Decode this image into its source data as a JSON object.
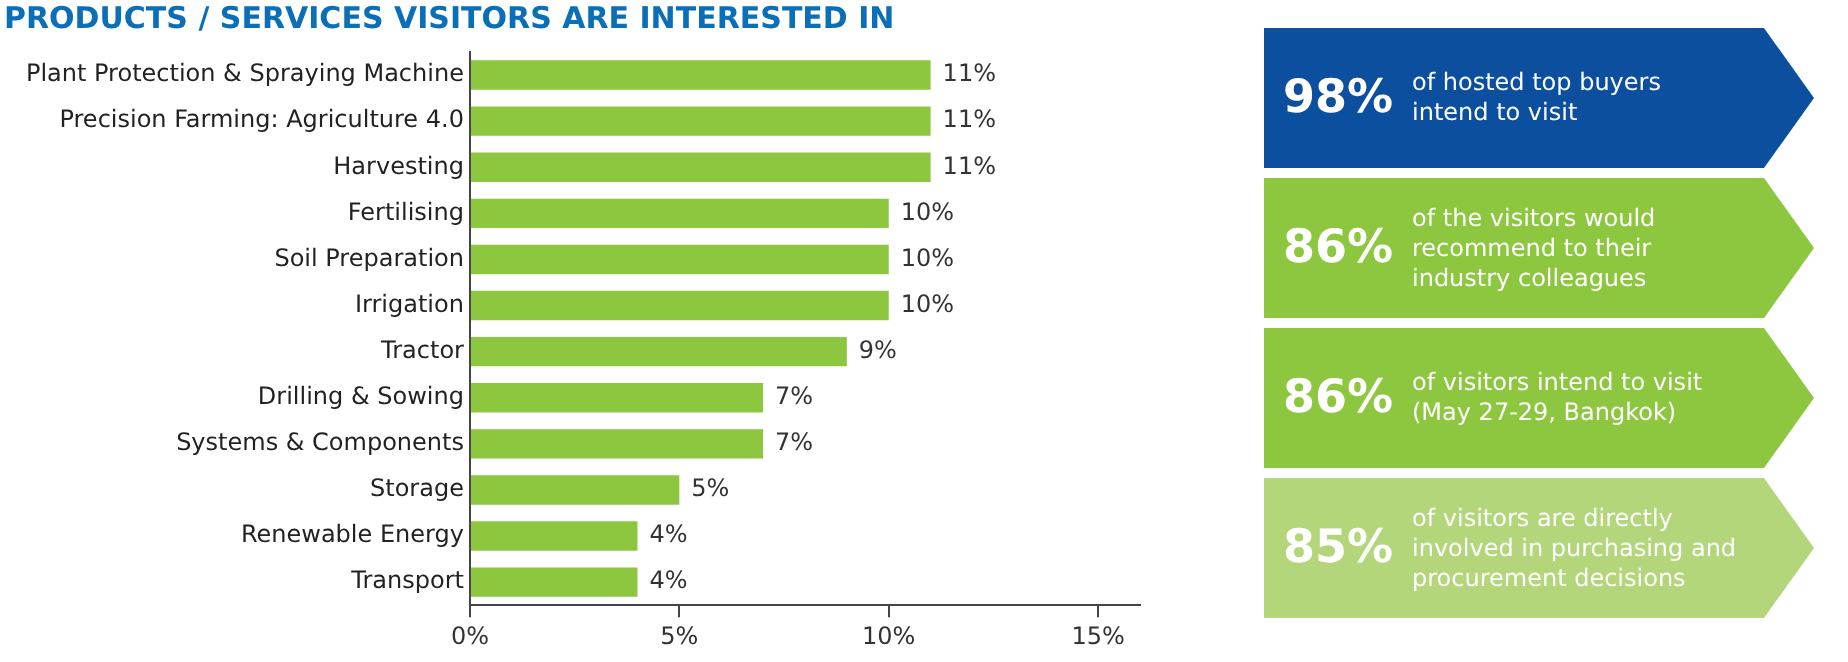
{
  "chart_data": [
    {
      "type": "bar",
      "orientation": "horizontal",
      "title": "PRODUCTS / SERVICES VISITORS ARE INTERESTED IN",
      "categories": [
        "Plant Protection & Spraying Machine",
        "Precision Farming: Agriculture 4.0",
        "Harvesting",
        "Fertilising",
        "Soil Preparation",
        "Irrigation",
        "Tractor",
        "Drilling & Sowing",
        "Systems & Components",
        "Storage",
        "Renewable Energy",
        "Transport"
      ],
      "values": [
        11,
        11,
        11,
        10,
        10,
        10,
        9,
        7,
        7,
        5,
        4,
        4
      ],
      "value_labels": [
        "11%",
        "11%",
        "11%",
        "10%",
        "10%",
        "10%",
        "9%",
        "7%",
        "7%",
        "5%",
        "4%",
        "4%"
      ],
      "color": "#8dc63f",
      "xlim": [
        0,
        16
      ],
      "xticks": [
        {
          "value": 0,
          "label": "0%"
        },
        {
          "value": 5,
          "label": "5%"
        },
        {
          "value": 10,
          "label": "10%"
        },
        {
          "value": 15,
          "label": "15%"
        }
      ],
      "grid": false,
      "legend": false
    },
    {
      "type": "other",
      "categories": [
        "98%",
        "86%",
        "86%",
        "85%"
      ],
      "annotations": [
        "of hosted top buyers intend to visit",
        "of the visitors would recommend to their industry colleagues",
        "of visitors intend to visit (May 27-29, Bangkok)",
        "of visitors are directly involved in purchasing and procurement decisions"
      ],
      "colors": [
        "#0b4f9e",
        "#8dc63f",
        "#8dc63f",
        "#b3d67a"
      ]
    }
  ]
}
